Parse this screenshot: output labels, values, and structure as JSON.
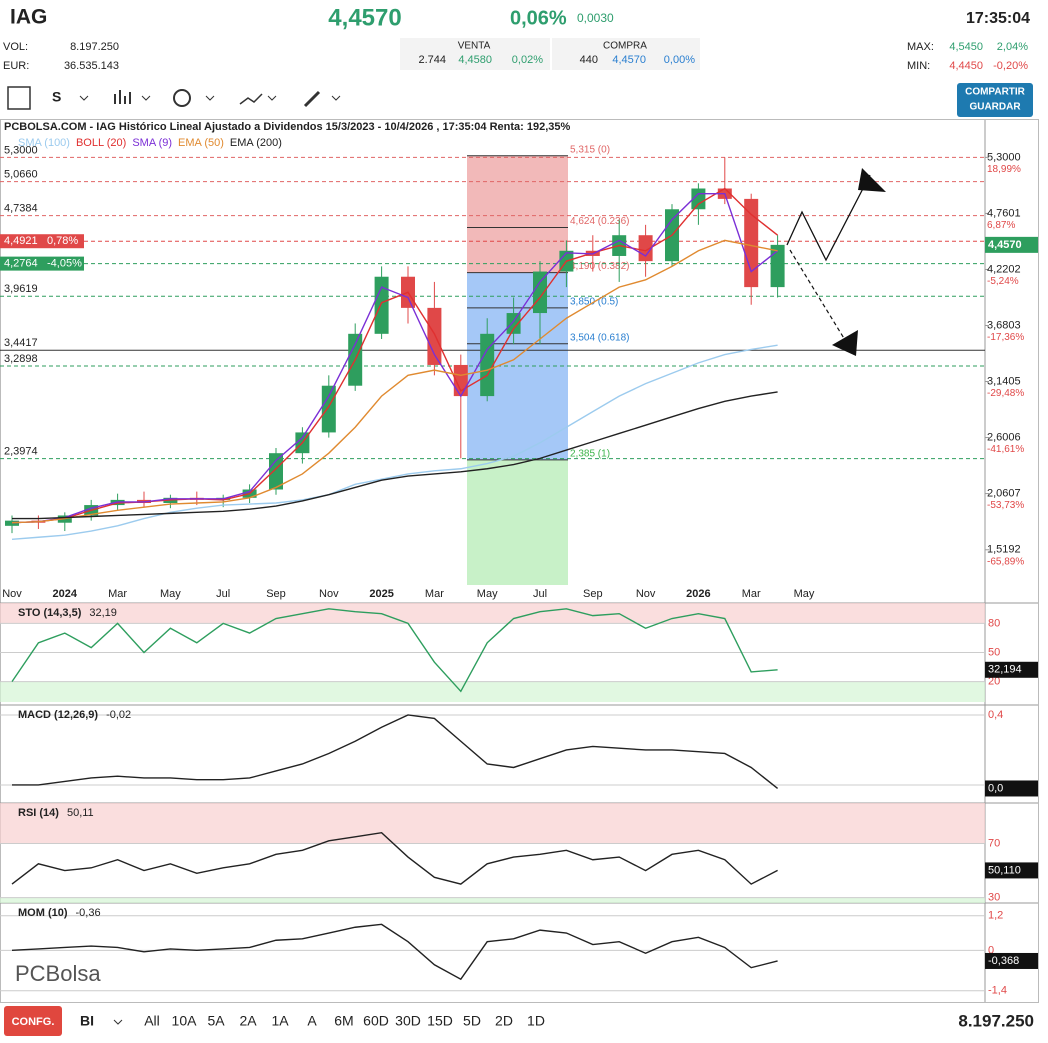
{
  "header": {
    "symbol": "IAG",
    "price": "4,4570",
    "change_pct": "0,06%",
    "change": "0,0030",
    "time": "17:35:04",
    "vol_label": "VOL:",
    "vol": "8.197.250",
    "eur_label": "EUR:",
    "eur": "36.535.143"
  },
  "quote": {
    "venta_label": "VENTA",
    "compra_label": "COMPRA",
    "venta": [
      "2.744",
      "4,4580",
      "0,02%"
    ],
    "compra": [
      "440",
      "4,4570",
      "0,00%"
    ]
  },
  "range": {
    "max_label": "MAX:",
    "max": [
      "4,5450",
      "2,04%"
    ],
    "min_label": "MIN:",
    "min": [
      "4,4450",
      "-0,20%"
    ]
  },
  "toolbar": {
    "period": "S",
    "share": "COMPARTIR",
    "save": "GUARDAR"
  },
  "footer": {
    "config": "CONFG.",
    "mode": "BI",
    "ranges": [
      "All",
      "10A",
      "5A",
      "2A",
      "1A",
      "A",
      "6M",
      "60D",
      "30D",
      "15D",
      "5D",
      "2D",
      "1D"
    ],
    "volume": "8.197.250"
  },
  "watermark": "PCBolsa",
  "chart_data": [
    {
      "type": "candlestick",
      "title": "PCBOLSA.COM - IAG Histórico Lineal Ajustado a Dividendos 15/3/2023 - 10/4/2026 , 17:35:04 Renta: 192,35%",
      "categories": [
        "Nov",
        null,
        "2024",
        null,
        "Mar",
        null,
        "May",
        null,
        "Jul",
        null,
        "Sep",
        null,
        "Nov",
        null,
        "2025",
        null,
        "Mar",
        null,
        "May",
        null,
        "Jul",
        null,
        "Sep",
        null,
        "Nov",
        null,
        "2026",
        null,
        "Mar",
        null,
        "May"
      ],
      "open": [
        1.75,
        1.8,
        1.78,
        1.85,
        1.95,
        2.0,
        1.97,
        2.02,
        2.0,
        2.02,
        2.1,
        2.45,
        2.65,
        3.1,
        3.6,
        4.15,
        3.85,
        3.3,
        3.0,
        3.6,
        3.8,
        4.2,
        4.4,
        4.35,
        4.55,
        4.3,
        4.8,
        5.0,
        4.9,
        4.05,
        null
      ],
      "high": [
        1.85,
        1.85,
        1.88,
        2.0,
        2.06,
        2.08,
        2.05,
        2.08,
        2.05,
        2.15,
        2.5,
        2.7,
        3.2,
        3.7,
        4.25,
        4.25,
        4.1,
        3.4,
        3.75,
        3.95,
        4.3,
        4.5,
        4.55,
        4.7,
        4.65,
        4.85,
        5.05,
        5.3,
        4.95,
        4.55,
        null
      ],
      "low": [
        1.68,
        1.72,
        1.7,
        1.8,
        1.9,
        1.93,
        1.92,
        1.95,
        1.93,
        1.97,
        2.05,
        2.35,
        2.6,
        3.05,
        3.55,
        3.7,
        3.2,
        2.4,
        2.95,
        3.5,
        3.5,
        4.05,
        4.2,
        4.1,
        4.15,
        4.25,
        4.65,
        4.85,
        3.88,
        3.95,
        null
      ],
      "close": [
        1.8,
        1.78,
        1.85,
        1.95,
        2.0,
        1.97,
        2.02,
        2.0,
        2.02,
        2.1,
        2.45,
        2.65,
        3.1,
        3.6,
        4.15,
        3.85,
        3.3,
        3.0,
        3.6,
        3.8,
        4.2,
        4.4,
        4.35,
        4.55,
        4.3,
        4.8,
        5.0,
        4.9,
        4.05,
        4.457,
        null
      ],
      "up_color": "#2e9e5e",
      "down_color": "#e04848",
      "series": [
        {
          "name": "SMA (100)",
          "color": "#9ccbee",
          "values": [
            1.62,
            1.64,
            1.66,
            1.7,
            1.75,
            1.82,
            1.88,
            1.92,
            1.95,
            1.96,
            1.97,
            2.0,
            2.05,
            2.15,
            2.2,
            2.25,
            2.28,
            2.3,
            2.35,
            2.42,
            2.55,
            2.7,
            2.85,
            3.0,
            3.12,
            3.22,
            3.32,
            3.4,
            3.45,
            3.49,
            null
          ]
        },
        {
          "name": "BOLL (20)",
          "color": "#e03030",
          "values": [
            1.78,
            1.79,
            1.82,
            1.9,
            1.97,
            1.98,
            2.0,
            2.01,
            2.0,
            2.06,
            2.3,
            2.55,
            2.9,
            3.35,
            3.9,
            4.0,
            3.6,
            3.05,
            3.2,
            3.65,
            3.95,
            4.3,
            4.38,
            4.45,
            4.4,
            4.55,
            4.85,
            5.0,
            4.75,
            4.55,
            null
          ]
        },
        {
          "name": "SMA (9)",
          "color": "#7b2fd6",
          "values": [
            1.78,
            1.79,
            1.83,
            1.92,
            1.98,
            1.98,
            2.01,
            2.01,
            2.01,
            2.08,
            2.38,
            2.6,
            3.0,
            3.5,
            4.05,
            3.95,
            3.4,
            3.0,
            3.45,
            3.72,
            4.1,
            4.38,
            4.37,
            4.5,
            4.35,
            4.7,
            4.95,
            4.95,
            4.2,
            4.4,
            null
          ]
        },
        {
          "name": "EMA (50)",
          "color": "#e08a30",
          "values": [
            1.78,
            1.79,
            1.82,
            1.86,
            1.9,
            1.93,
            1.96,
            1.97,
            1.98,
            2.02,
            2.12,
            2.25,
            2.45,
            2.7,
            3.0,
            3.2,
            3.25,
            3.2,
            3.25,
            3.35,
            3.55,
            3.75,
            3.9,
            4.05,
            4.12,
            4.25,
            4.4,
            4.5,
            4.45,
            4.4,
            null
          ]
        },
        {
          "name": "EMA (200)",
          "color": "#222222",
          "values": [
            1.82,
            1.82,
            1.83,
            1.84,
            1.85,
            1.86,
            1.87,
            1.88,
            1.89,
            1.91,
            1.94,
            1.99,
            2.05,
            2.12,
            2.19,
            2.23,
            2.25,
            2.27,
            2.3,
            2.34,
            2.4,
            2.48,
            2.56,
            2.64,
            2.72,
            2.8,
            2.88,
            2.95,
            3.0,
            3.04,
            null
          ]
        }
      ],
      "ylim": [
        1.18,
        5.66
      ],
      "yticks": [
        {
          "value": 5.3,
          "label": "5,3000"
        },
        {
          "value": 4.7601,
          "label": "4,7601"
        },
        {
          "value": 4.2202,
          "label": "4,2202"
        },
        {
          "value": 3.6803,
          "label": "3,6803"
        },
        {
          "value": 3.1405,
          "label": "3,1405"
        },
        {
          "value": 2.6006,
          "label": "2,6006"
        },
        {
          "value": 2.0607,
          "label": "2,0607"
        },
        {
          "value": 1.5192,
          "label": "1,5192"
        }
      ],
      "ytick_changes": [
        "18,99%",
        "6,87%",
        "-5,24%",
        "-17,36%",
        "-29,48%",
        "-41,61%",
        "-53,73%",
        "-65,89%"
      ],
      "levels": [
        {
          "value": 5.3,
          "label": "5,3000",
          "color": "#e06666"
        },
        {
          "value": 5.066,
          "label": "5,0660",
          "color": "#e06666"
        },
        {
          "value": 4.7384,
          "label": "4,7384",
          "color": "#e06666"
        },
        {
          "value": 4.4921,
          "label": "4,4921",
          "change": "0,78%",
          "color": "#e04848"
        },
        {
          "value": 4.2764,
          "label": "4,2764",
          "change": "-4,05%",
          "color": "#2e9e5e"
        },
        {
          "value": 3.9619,
          "label": "3,9619",
          "color": "#2e9e5e"
        },
        {
          "value": 3.4417,
          "label": "3,4417",
          "color": "#333333"
        },
        {
          "value": 3.2898,
          "label": "3,2898",
          "color": "#2e9e5e"
        },
        {
          "value": 2.3974,
          "label": "2,3974",
          "color": "#2e9e5e"
        }
      ],
      "fib": [
        {
          "value": 5.315,
          "label": "5,315 (0)"
        },
        {
          "value": 4.624,
          "label": "4,624 (0.236)"
        },
        {
          "value": 4.19,
          "label": "4,190 (0.382)"
        },
        {
          "value": 3.85,
          "label": "3,850 (0.5)"
        },
        {
          "value": 3.504,
          "label": "3,504 (0.618)"
        },
        {
          "value": 2.385,
          "label": "2,385 (1)"
        }
      ],
      "last_price": {
        "value": 4.457,
        "label": "4,4570"
      }
    },
    {
      "type": "line",
      "title": "STO (14,3,5)",
      "subtitle": "32,19",
      "color": "#2e9e5e",
      "values": [
        20,
        60,
        70,
        55,
        80,
        50,
        75,
        60,
        80,
        70,
        85,
        90,
        95,
        92,
        90,
        80,
        40,
        10,
        60,
        85,
        92,
        95,
        88,
        90,
        75,
        85,
        90,
        85,
        30,
        32.194,
        null
      ],
      "ylim": [
        -1,
        101
      ],
      "yticks": [
        80,
        50,
        20
      ],
      "bands": true,
      "last_label": "32,194"
    },
    {
      "type": "line",
      "title": "MACD (12,26,9)",
      "subtitle": "-0,02",
      "color": "#222222",
      "values": [
        0.0,
        0.0,
        0.02,
        0.04,
        0.05,
        0.04,
        0.04,
        0.03,
        0.03,
        0.04,
        0.08,
        0.12,
        0.18,
        0.25,
        0.33,
        0.4,
        0.38,
        0.25,
        0.12,
        0.1,
        0.15,
        0.2,
        0.22,
        0.21,
        0.2,
        0.2,
        0.19,
        0.18,
        0.1,
        -0.02,
        null
      ],
      "ylim": [
        -0.103,
        0.457
      ],
      "yticks": [
        {
          "value": 0.4,
          "label": "0,4"
        },
        0
      ],
      "bands": false,
      "last_label": "0,0"
    },
    {
      "type": "line",
      "title": "RSI (14)",
      "subtitle": "50,11",
      "color": "#222222",
      "values": [
        40,
        55,
        50,
        52,
        58,
        50,
        55,
        48,
        52,
        55,
        62,
        65,
        72,
        75,
        78,
        60,
        45,
        40,
        55,
        60,
        62,
        65,
        58,
        60,
        50,
        62,
        65,
        58,
        40,
        50.11,
        null
      ],
      "ylim": [
        26,
        100
      ],
      "yticks": [
        70,
        30
      ],
      "bands": true,
      "last_label": "50,110"
    },
    {
      "type": "line",
      "title": "MOM (10)",
      "subtitle": "-0,36",
      "color": "#222222",
      "values": [
        0,
        0.05,
        0.1,
        0.15,
        0.1,
        -0.05,
        0.05,
        0.0,
        0.05,
        0.1,
        0.35,
        0.4,
        0.6,
        0.8,
        0.9,
        0.3,
        -0.5,
        -1.0,
        0.3,
        0.4,
        0.7,
        0.6,
        0.2,
        0.3,
        -0.1,
        0.3,
        0.45,
        0.1,
        -0.6,
        -0.368,
        null
      ],
      "ylim": [
        -1.72,
        1.64
      ],
      "yticks": [
        {
          "value": 1.2,
          "label": "1,2"
        },
        0,
        {
          "value": -1.4,
          "label": "-1,4"
        }
      ],
      "bands": false,
      "last_label": "-0,368"
    }
  ]
}
